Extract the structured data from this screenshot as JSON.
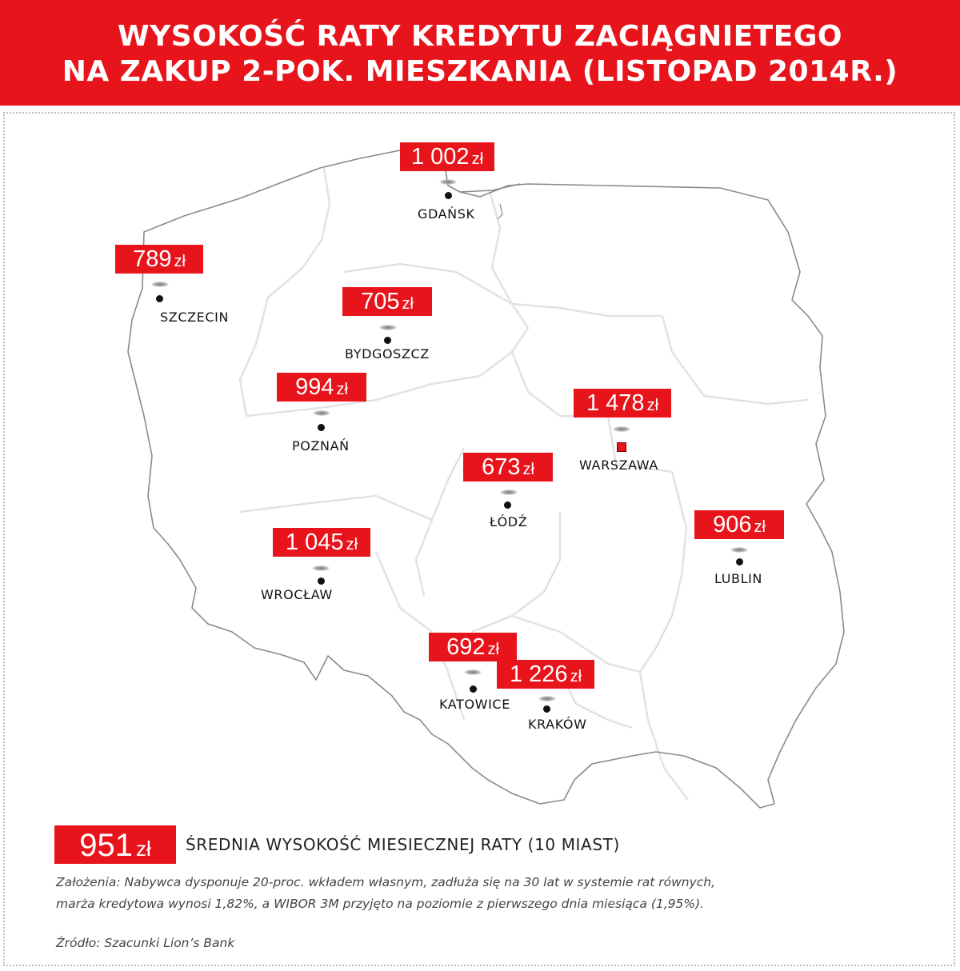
{
  "header": {
    "line1": "WYSOKOŚĆ RATY KREDYTU ZACIĄGNIETEGO",
    "line2": "NA ZAKUP 2-POK. MIESZKANIA (LISTOPAD 2014R.)"
  },
  "currency": "zł",
  "cities": [
    {
      "id": "gdansk",
      "name": "GDAŃSK",
      "value": "1 002",
      "marker": "dot"
    },
    {
      "id": "szczecin",
      "name": "SZCZECIN",
      "value": "789",
      "marker": "dot"
    },
    {
      "id": "bydgoszcz",
      "name": "BYDGOSZCZ",
      "value": "705",
      "marker": "dot"
    },
    {
      "id": "poznan",
      "name": "POZNAŃ",
      "value": "994",
      "marker": "dot"
    },
    {
      "id": "warszawa",
      "name": "WARSZAWA",
      "value": "1 478",
      "marker": "square"
    },
    {
      "id": "lodz",
      "name": "ŁÓDŹ",
      "value": "673",
      "marker": "dot"
    },
    {
      "id": "lublin",
      "name": "LUBLIN",
      "value": "906",
      "marker": "dot"
    },
    {
      "id": "wroclaw",
      "name": "WROCŁAW",
      "value": "1 045",
      "marker": "dot"
    },
    {
      "id": "katowice",
      "name": "KATOWICE",
      "value": "692",
      "marker": "dot"
    },
    {
      "id": "krakow",
      "name": "KRAKÓW",
      "value": "1 226",
      "marker": "dot"
    }
  ],
  "summary": {
    "value": "951",
    "currency": "zł",
    "label": "ŚREDNIA WYSOKOŚĆ MIESIECZNEJ RATY (10 MIAST)"
  },
  "notes": {
    "assumptions_line1": "Założenia: Nabywca dysponuje 20-proc. wkładem własnym, zadłuża się na 30 lat w systemie rat równych,",
    "assumptions_line2": "marża kredytowa wynosi 1,82%, a WIBOR 3M przyjęto na poziomie z pierwszego dnia miesiąca (1,95%).",
    "source": "Źródło: Szacunki Lion’s Bank"
  },
  "colors": {
    "accent": "#e8141b",
    "outline": "#8a8a8a",
    "regions": "#e2e2e2"
  }
}
